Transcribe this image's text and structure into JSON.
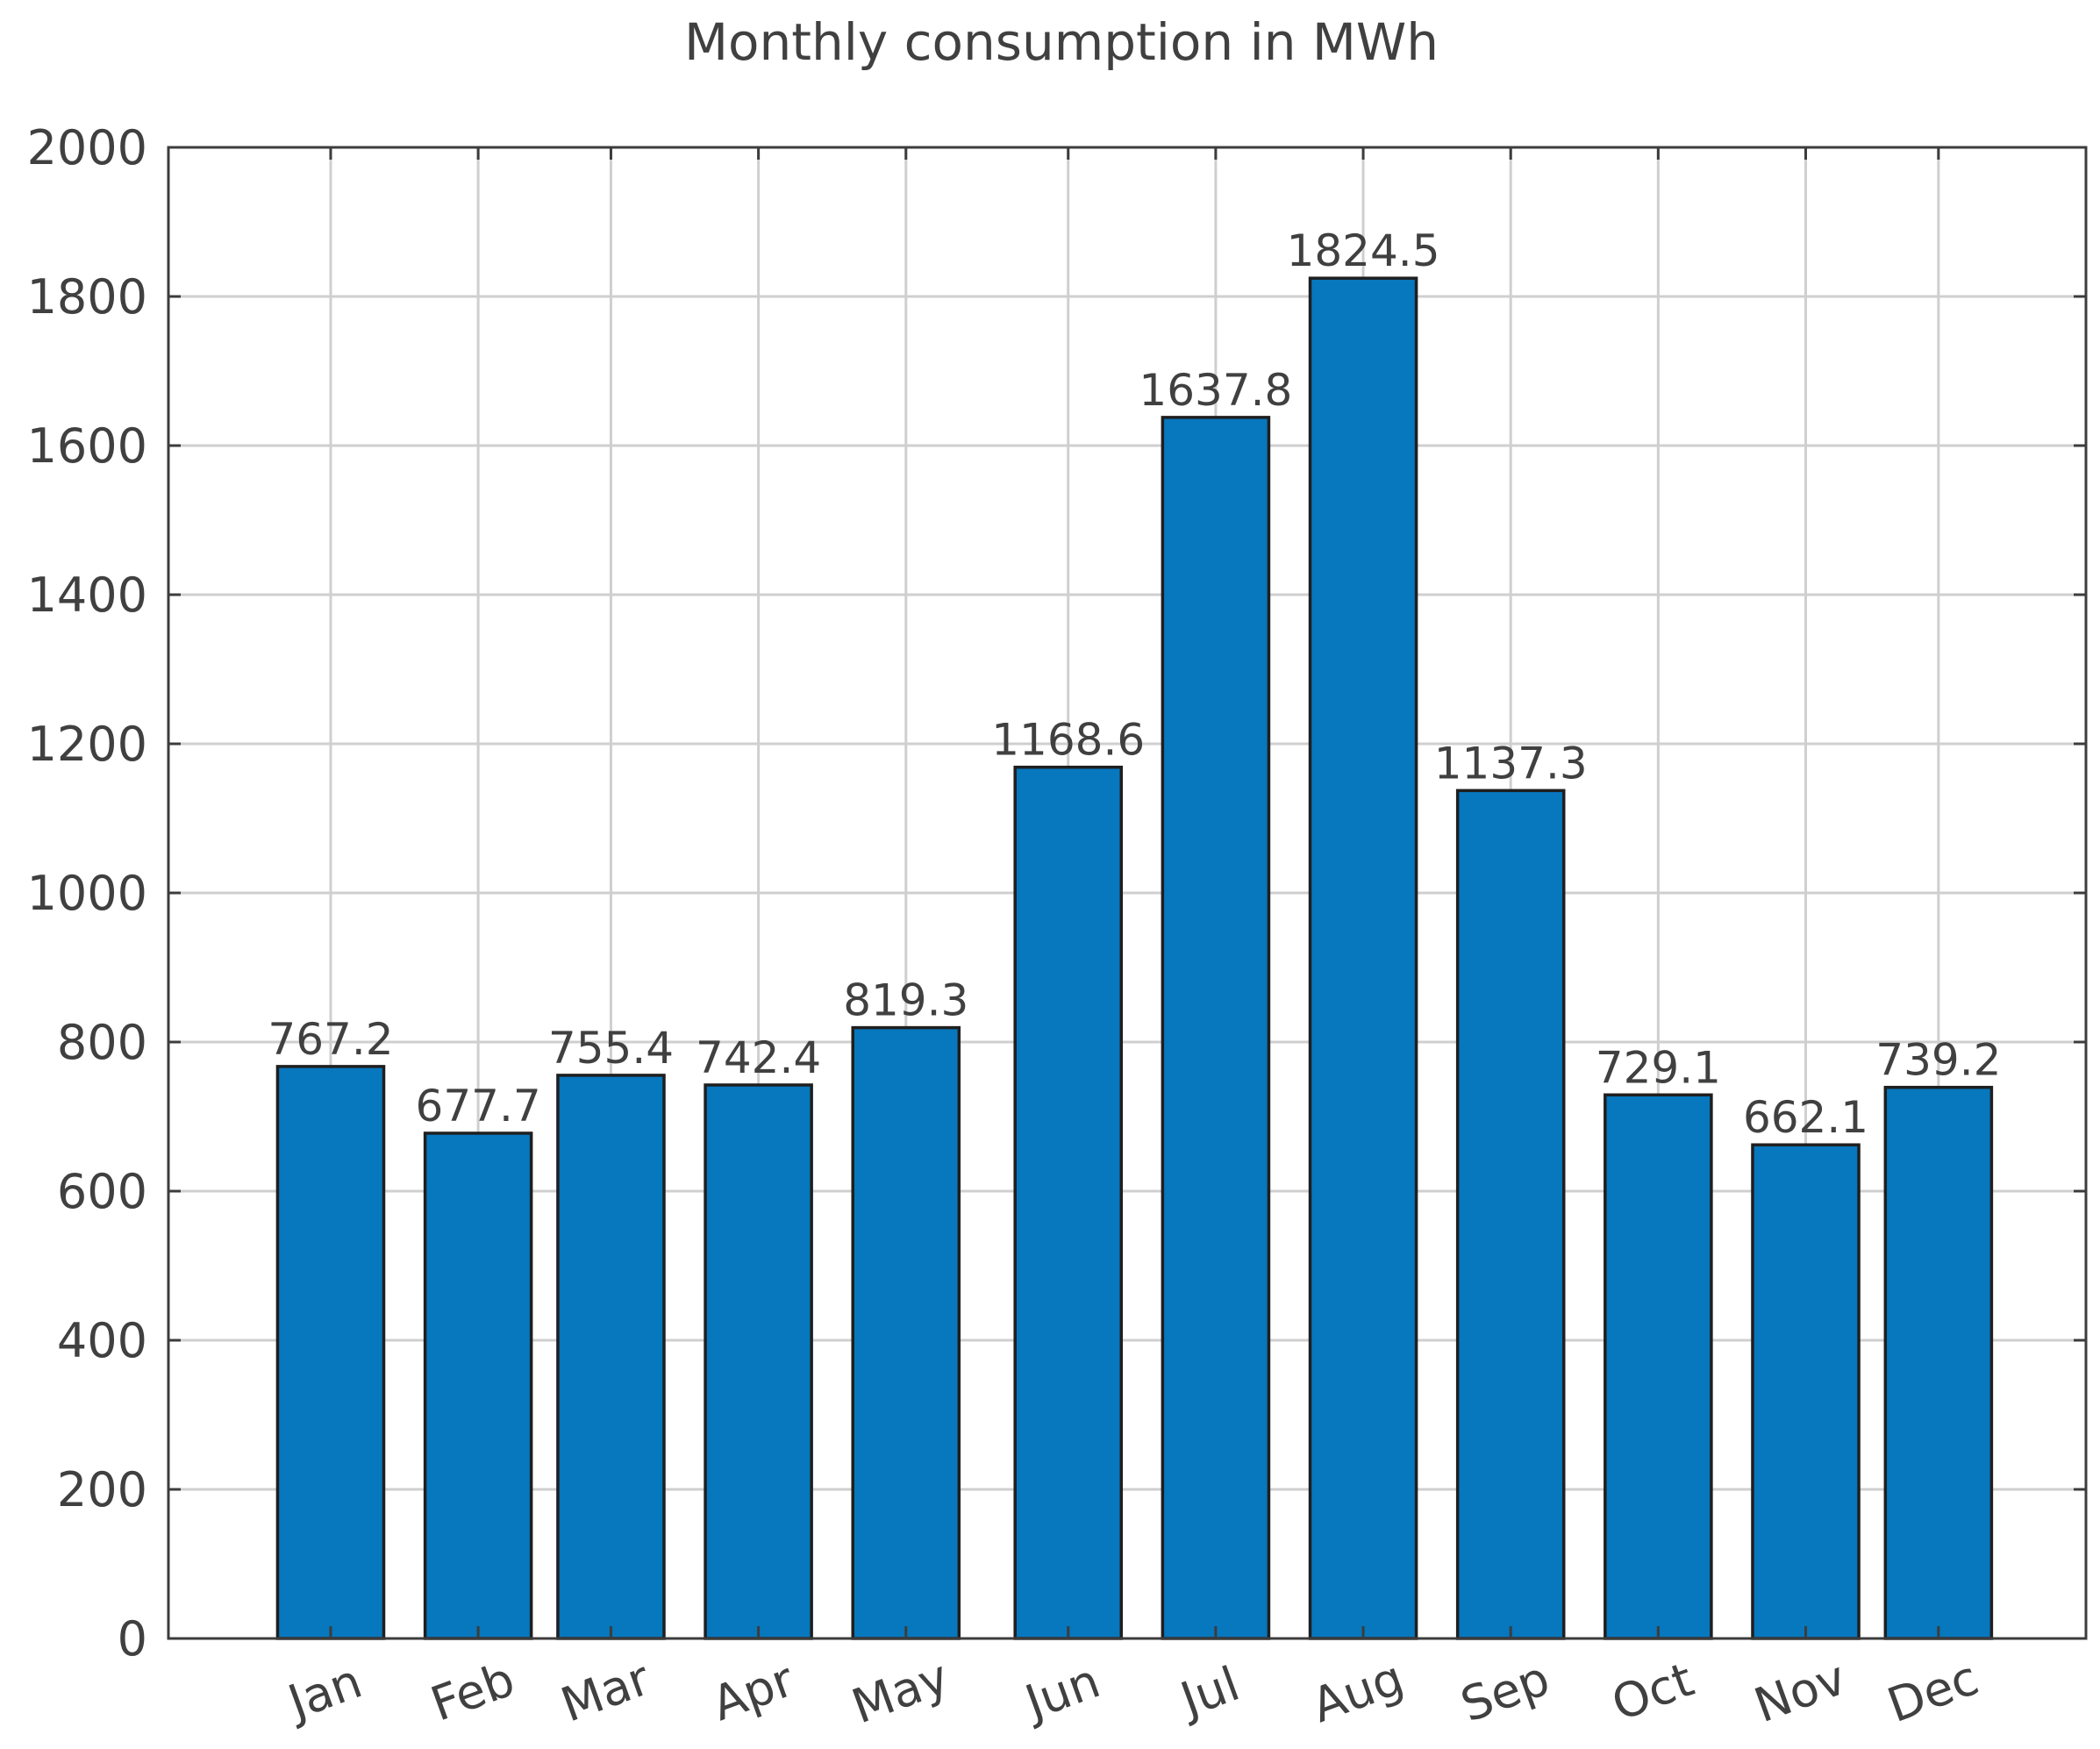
{
  "chart_data": {
    "type": "bar",
    "title": "Monthly consumption in MWh",
    "xlabel": "",
    "ylabel": "",
    "categories": [
      "Jan",
      "Feb",
      "Mar",
      "Apr",
      "May",
      "Jun",
      "Jul",
      "Aug",
      "Sep",
      "Oct",
      "Nov",
      "Dec"
    ],
    "values": [
      767.2,
      677.7,
      755.4,
      742.4,
      819.3,
      1168.6,
      1637.8,
      1824.5,
      1137.3,
      729.1,
      662.1,
      739.2
    ],
    "value_labels": [
      "767.2",
      "677.7",
      "755.4",
      "742.4",
      "819.3",
      "1168.6",
      "1637.8",
      "1824.5",
      "1137.3",
      "729.1",
      "662.1",
      "739.2"
    ],
    "x_positions": [
      1.1,
      2.1,
      3.0,
      4.0,
      5.0,
      6.1,
      7.1,
      8.1,
      9.1,
      10.1,
      11.1,
      12.0
    ],
    "x_gridlines": [
      1.1,
      2.1,
      3.0,
      4.0,
      5.0,
      6.1,
      7.1,
      8.1,
      9.1,
      10.1,
      11.1,
      12.0
    ],
    "bar_width": 0.72,
    "xlim": [
      0,
      13
    ],
    "ylim": [
      0,
      2000
    ],
    "yticks": [
      0,
      200,
      400,
      600,
      800,
      1000,
      1200,
      1400,
      1600,
      1800,
      2000
    ],
    "ytick_labels": [
      "0",
      "200",
      "400",
      "600",
      "800",
      "1000",
      "1200",
      "1400",
      "1600",
      "1800",
      "2000"
    ],
    "grid": true,
    "bar_color": "#0777BE",
    "edge_color": "#1F1F1F"
  }
}
